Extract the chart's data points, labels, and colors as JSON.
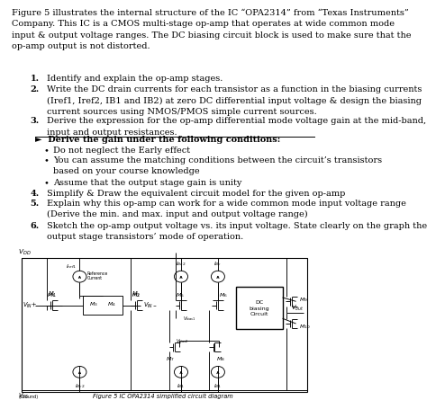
{
  "bg_color": "#ffffff",
  "text_color": "#000000",
  "font_size": 7.0,
  "circuit_font_size": 4.8,
  "intro": "Figure 5 illustrates the internal structure of the IC “OPA2314” from “Texas Instruments”\nCompany. This IC is a CMOS multi-stage op-amp that operates at wide common mode\ninput & output voltage ranges. The DC biasing circuit block is used to make sure that the\nop-amp output is not distorted.",
  "item1": "Identify and explain the op-amp stages.",
  "item2": "Write the DC drain currents for each transistor as a function in the biasing currents\n(Iref1, Iref2, IB1 and IB2) at zero DC differential input voltage & design the biasing\ncurrent sources using NMOS/PMOS simple current sources.",
  "item3": "Derive the expression for the op-amp differential mode voltage gain at the mid-band,\ninput and output resistances.",
  "sub_header": "Derive the gain under the following conditions:",
  "bullet1": "Do not neglect the Early effect",
  "bullet2": "You can assume the matching conditions between the circuit’s transistors\nbased on your course knowledge",
  "bullet3": "Assume that the output stage gain is unity",
  "item4": "Simplify & Draw the equivalent circuit model for the given op-amp",
  "item5": "Explain why this op-amp can work for a wide common mode input voltage range\n(Derive the min. and max. input and output voltage range)",
  "item6": "Sketch the op-amp output voltage vs. its input voltage. State clearly on the graph the\noutput stage transistors’ mode of operation.",
  "caption": "Figure 5 IC OPA2314 simplified circuit diagram"
}
